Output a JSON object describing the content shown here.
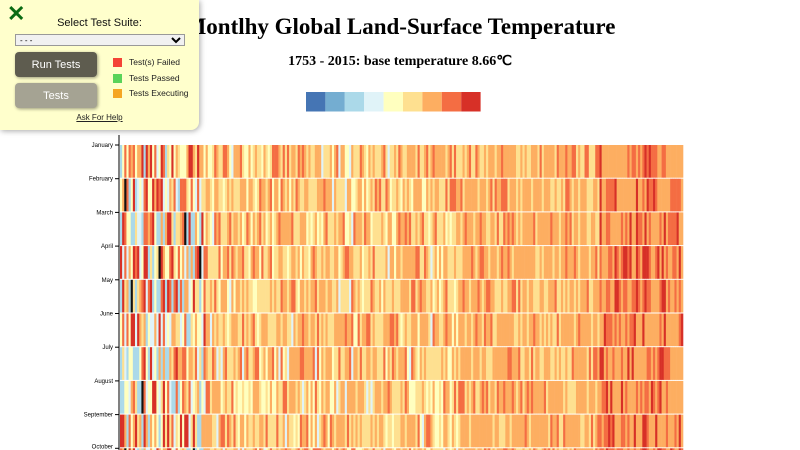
{
  "chart_data": {
    "type": "heatmap",
    "title": "Montlhy Global Land-Surface Temperature",
    "subtitle": "1753 - 2015: base temperature 8.66℃",
    "base_temperature": 8.66,
    "year_range": [
      1753,
      2015
    ],
    "y_tick_labels": [
      "January",
      "February",
      "March",
      "April",
      "May",
      "June",
      "July",
      "August",
      "September",
      "October"
    ],
    "legend_colors": [
      "#4575b4",
      "#74add1",
      "#abd9e9",
      "#e0f3f8",
      "#ffffbf",
      "#fee090",
      "#fdae61",
      "#f46d43",
      "#d73027"
    ]
  },
  "test_panel": {
    "close_icon": "x-icon",
    "suite_label": "Select Test Suite:",
    "suite_selected": "- - -",
    "run_tests": "Run Tests",
    "tests": "Tests",
    "legend": [
      {
        "label": "Test(s) Failed",
        "color": "#f44336"
      },
      {
        "label": "Tests Passed",
        "color": "#5ad35a"
      },
      {
        "label": "Tests Executing",
        "color": "#f5a623"
      }
    ],
    "help": "Ask For Help"
  }
}
